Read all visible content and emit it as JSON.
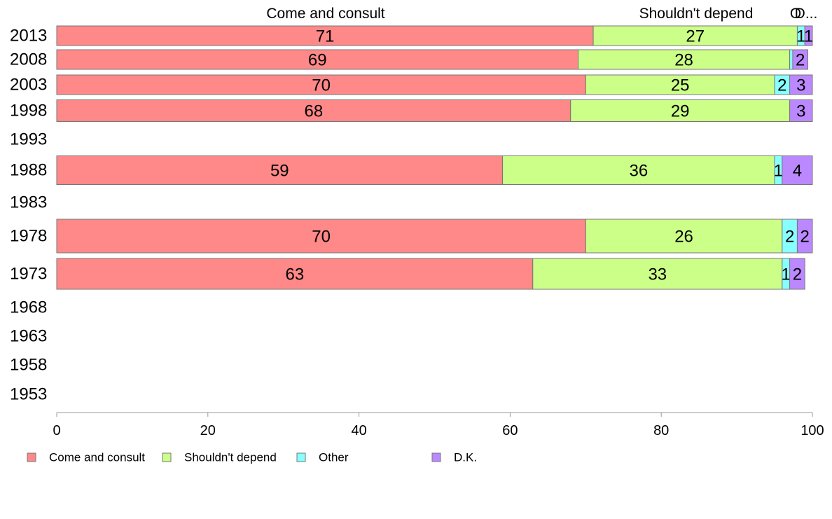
{
  "chart_data": {
    "type": "bar",
    "orientation": "horizontal",
    "stacked": true,
    "categories": [
      "2013",
      "2008",
      "2003",
      "1998",
      "1993",
      "1988",
      "1983",
      "1978",
      "1973",
      "1968",
      "1963",
      "1958",
      "1953"
    ],
    "series": [
      {
        "name": "Come and consult",
        "color": "#ff8888",
        "values": [
          71,
          69,
          70,
          68,
          null,
          59,
          null,
          70,
          63,
          null,
          null,
          null,
          null
        ]
      },
      {
        "name": "Shouldn't depend",
        "color": "#ccff88",
        "values": [
          27,
          28,
          25,
          29,
          null,
          36,
          null,
          26,
          33,
          null,
          null,
          null,
          null
        ]
      },
      {
        "name": "Other",
        "color": "#88ffff",
        "values": [
          1,
          0.4,
          2,
          0,
          null,
          1,
          null,
          2,
          1,
          null,
          null,
          null,
          null
        ]
      },
      {
        "name": "D.K.",
        "color": "#bb88ff",
        "values": [
          1,
          2,
          3,
          3,
          null,
          4,
          null,
          2,
          2,
          null,
          null,
          null,
          null
        ]
      }
    ],
    "data_labels": [
      [
        "71",
        "27",
        "1",
        "1"
      ],
      [
        "69",
        "28",
        "",
        "2"
      ],
      [
        "70",
        "25",
        "2",
        "3"
      ],
      [
        "68",
        "29",
        "",
        "3"
      ],
      [
        "",
        "",
        "",
        ""
      ],
      [
        "59",
        "36",
        "1",
        "4"
      ],
      [
        "",
        "",
        "",
        ""
      ],
      [
        "70",
        "26",
        "2",
        "2"
      ],
      [
        "63",
        "33",
        "1",
        "2"
      ],
      [
        "",
        "",
        "",
        ""
      ],
      [
        "",
        "",
        "",
        ""
      ],
      [
        "",
        "",
        "",
        ""
      ],
      [
        "",
        "",
        "",
        ""
      ]
    ],
    "top_labels": [
      "Come and consult",
      "Shouldn't depend",
      "O",
      "D..."
    ],
    "xlim": [
      0,
      100
    ],
    "xticks": [
      0,
      20,
      40,
      60,
      80,
      100
    ],
    "xlabel": "",
    "ylabel": "",
    "title": "",
    "grid": false,
    "legend_position": "bottom-left"
  }
}
